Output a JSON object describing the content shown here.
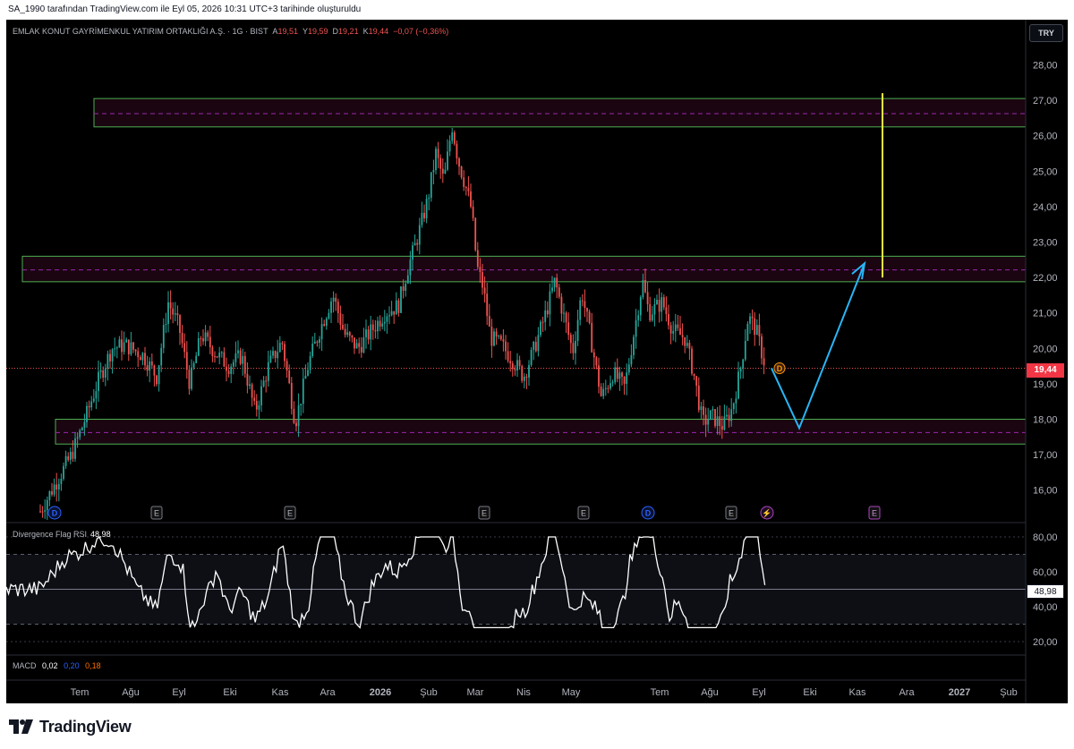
{
  "header": {
    "attribution": "SA_1990 tarafından TradingView.com ile Eyl 05, 2026 10:31 UTC+3 tarihinde oluşturuldu"
  },
  "symbol": {
    "name": "EMLAK KONUT GAYRİMENKUL YATIRIM ORTAKLIĞI A.Ş. · 1G · BIST",
    "o_label": "A",
    "o": "19,51",
    "h_label": "Y",
    "h": "19,59",
    "l_label": "D",
    "l": "19,21",
    "c_label": "K",
    "c": "19,44",
    "change": "−0,07 (−0,36%)"
  },
  "currency": "TRY",
  "price_axis": {
    "labels": [
      "28,00",
      "27,00",
      "26,00",
      "25,00",
      "24,00",
      "23,00",
      "22,00",
      "21,00",
      "20,00",
      "19,00",
      "18,00",
      "17,00",
      "16,00"
    ],
    "current": "19,44"
  },
  "time_axis": {
    "labels": [
      "Tem",
      "Ağu",
      "Eyl",
      "Eki",
      "Kas",
      "Ara",
      "2026",
      "Şub",
      "Mar",
      "Nis",
      "May",
      "Tem",
      "Ağu",
      "Eyl",
      "Eki",
      "Kas",
      "Ara",
      "2027",
      "Şub"
    ]
  },
  "events": [
    {
      "type": "dividend",
      "glyph": "D"
    },
    {
      "type": "earnings",
      "glyph": "E"
    },
    {
      "type": "earnings",
      "glyph": "E"
    },
    {
      "type": "earnings",
      "glyph": "E"
    },
    {
      "type": "earnings",
      "glyph": "E"
    },
    {
      "type": "dividend",
      "glyph": "D"
    },
    {
      "type": "earnings",
      "glyph": "E"
    },
    {
      "type": "split",
      "glyph": "⚡"
    },
    {
      "type": "earnings-upcoming",
      "glyph": "E"
    }
  ],
  "last_marker": "D",
  "rsi": {
    "name": "Divergence Flag RSI",
    "value": "48,98",
    "axis": [
      "80,00",
      "60,00",
      "40,00",
      "20,00"
    ],
    "current": "48,98"
  },
  "macd": {
    "name": "MACD",
    "v1": "0,02",
    "v2": "0,20",
    "v3": "0,18"
  },
  "zones": [
    {
      "name": "resistance-upper",
      "top": 27.05,
      "bottom": 26.25
    },
    {
      "name": "resistance-mid",
      "top": 22.6,
      "bottom": 21.88
    },
    {
      "name": "support",
      "top": 18.0,
      "bottom": 17.3
    }
  ],
  "projection": {
    "points": [
      [
        19.44,
        "Eyl"
      ],
      [
        17.75,
        "Eki"
      ],
      [
        22.4,
        "Kas"
      ]
    ],
    "target_top": 27.2,
    "target_bottom": 22.0
  },
  "colors": {
    "up": "#26a69a",
    "down": "#ef5350",
    "zone_border": "#4caf50",
    "projection": "#29b6f6",
    "target": "#ffeb3b",
    "rsi_line": "#ffffff"
  },
  "brand": "TradingView"
}
